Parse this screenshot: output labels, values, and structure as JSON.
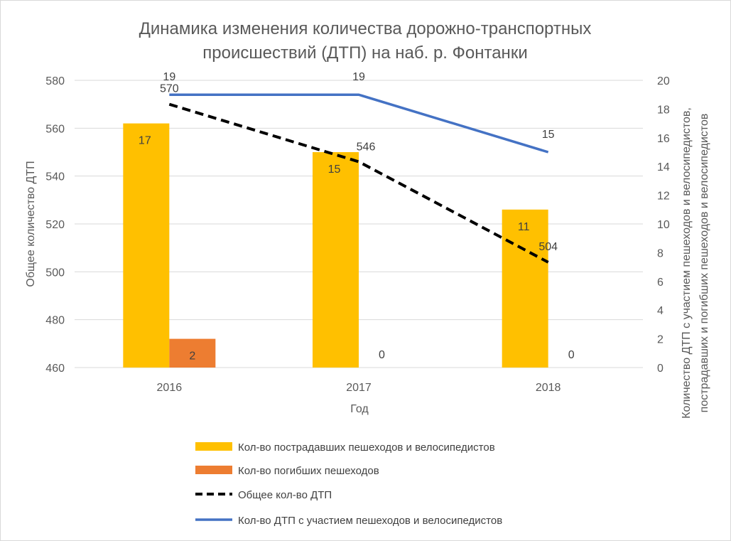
{
  "chart_data": {
    "type": "bar+line",
    "title": "Динамика изменения количества дорожно-транспортных происшествий (ДТП) на наб. р. Фонтанки",
    "title_lines": [
      "Динамика изменения количества дорожно-транспортных",
      "происшествий (ДТП) на наб. р. Фонтанки"
    ],
    "xlabel": "Год",
    "ylabel": "Общее количество ДТП",
    "y2label_lines": [
      "Количество ДТП с участием пешеходов и велосипедистов,",
      "пострадавших и погибших пешеходов и велосипедистов"
    ],
    "categories": [
      "2016",
      "2017",
      "2018"
    ],
    "ylim": [
      460,
      580
    ],
    "yticks": [
      460,
      480,
      500,
      520,
      540,
      560,
      580
    ],
    "y2lim": [
      0,
      20
    ],
    "y2ticks": [
      0,
      2,
      4,
      6,
      8,
      10,
      12,
      14,
      16,
      18,
      20
    ],
    "grid": true,
    "legend_position": "bottom",
    "series": [
      {
        "name": "Кол-во пострадавших пешеходов и велосипедистов",
        "type": "bar",
        "axis": "right",
        "color": "#FFC000",
        "values": [
          17,
          15,
          11
        ]
      },
      {
        "name": "Кол-во погибших пешеходов",
        "type": "bar",
        "axis": "right",
        "color": "#ED7D31",
        "values": [
          2,
          0,
          0
        ]
      },
      {
        "name": "Общее кол-во ДТП",
        "type": "line",
        "style": "dashed",
        "axis": "left",
        "color": "#000000",
        "values": [
          570,
          546,
          504
        ]
      },
      {
        "name": "Кол-во ДТП с участием пешеходов и велосипедистов",
        "type": "line",
        "axis": "right",
        "color": "#4472C4",
        "values": [
          19,
          19,
          15
        ]
      }
    ]
  }
}
